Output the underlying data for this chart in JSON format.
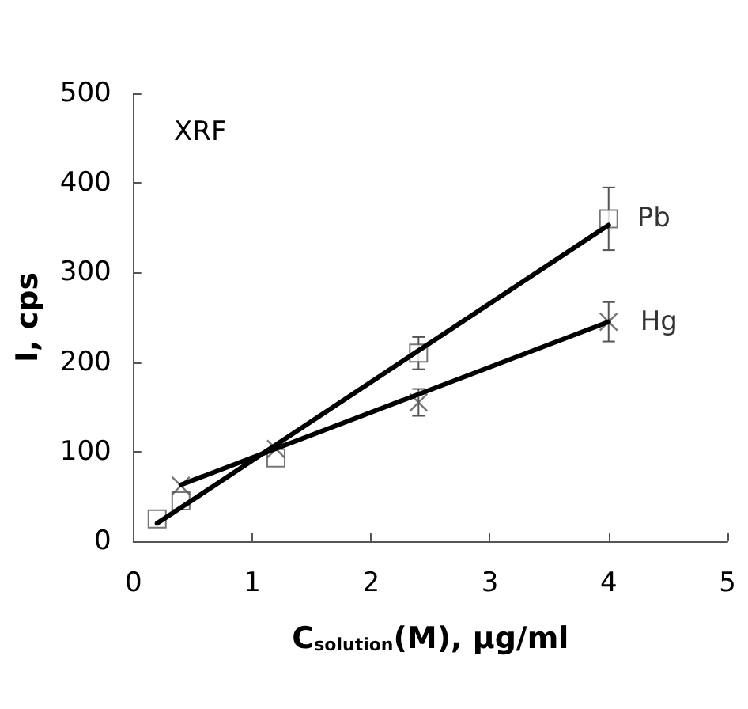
{
  "chart_data": {
    "type": "scatter",
    "xlabel": "C$_{solution}$(M), μg/ml",
    "ylabel": "I, cps",
    "annotations": [
      "XRF"
    ],
    "xlim": [
      0,
      5
    ],
    "xticks": [
      0,
      1,
      2,
      3,
      4,
      5
    ],
    "ylim": [
      0,
      500
    ],
    "yticks": [
      0,
      100,
      200,
      300,
      400,
      500
    ],
    "grid": false,
    "legend": false,
    "series": [
      {
        "name": "Pb",
        "marker": "square",
        "color": "#555555",
        "x": [
          0.2,
          0.4,
          1.2,
          2.4,
          4
        ],
        "values": [
          25,
          45,
          93,
          210,
          360
        ],
        "errors": [
          null,
          null,
          null,
          18,
          35
        ]
      },
      {
        "name": "Hg",
        "marker": "cross",
        "color": "#555555",
        "x": [
          0.4,
          1.2,
          2.4,
          4
        ],
        "values": [
          62,
          103,
          155,
          245
        ],
        "errors": [
          null,
          null,
          15,
          22
        ]
      },
      {
        "type": "line",
        "marker": "none",
        "color": "#000000",
        "x": [
          0.2,
          4
        ],
        "values": [
          20,
          353
        ]
      },
      {
        "type": "line",
        "marker": "none",
        "color": "#000000",
        "x": [
          0.4,
          4
        ],
        "values": [
          63,
          245
        ]
      }
    ]
  }
}
